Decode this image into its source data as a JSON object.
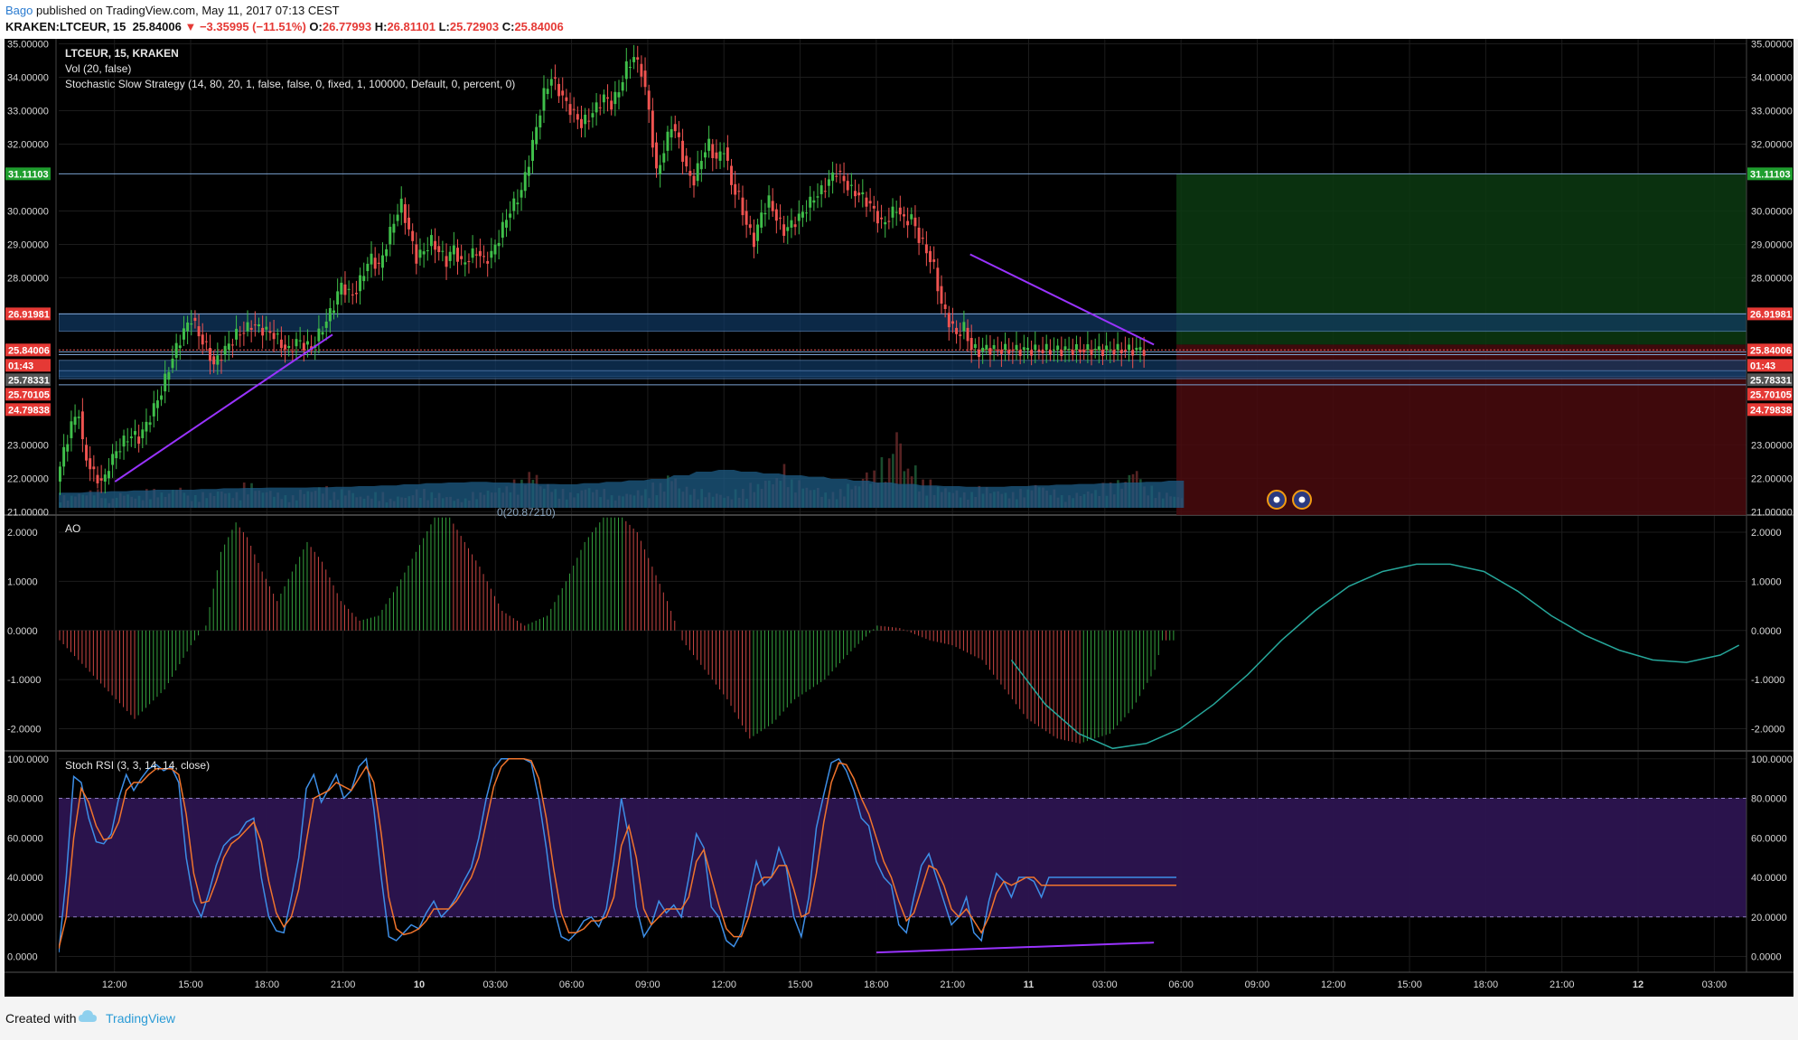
{
  "header": {
    "author": "Bago",
    "published_text": "published on TradingView.com, May 11, 2017 07:13 CEST",
    "symbol_line": "KRAKEN:LTCEUR, 15",
    "price": "25.84006",
    "change": "▼ −3.35995 (−11.51%)",
    "o_label": "O:",
    "o_val": "26.77993",
    "h_label": "H:",
    "h_val": "26.81101",
    "l_label": "L:",
    "l_val": "25.72903",
    "c_label": "C:",
    "c_val": "25.84006"
  },
  "legend": {
    "symbol": "LTCEUR, 15, KRAKEN",
    "volume": "Vol (20, false)",
    "strategy": "Stochastic Slow Strategy (14, 80, 20, 1, false, false, 0, fixed, 1, 100000, Default, 0, percent, 0)",
    "ao": "AO",
    "stoch": "Stoch RSI (3, 3, 14, 14, close)",
    "vol_ma_fragment": "0(20.87210)"
  },
  "price_badges": {
    "target": "31.11103",
    "entry": "26.91981",
    "last": "25.84006",
    "countdown": "01:43",
    "level_a": "25.78331",
    "level_b": "25.70105",
    "stop": "24.79838"
  },
  "footer": {
    "created_with": "Created with",
    "brand": "TradingView"
  },
  "colors": {
    "up": "#26a69a",
    "up_candle": "#3fbf4a",
    "down_candle": "#ef5350",
    "volume": "#1e5a7d",
    "trendline": "#9933ff",
    "stoch_k": "#3d8ee6",
    "stoch_d": "#f0742c",
    "projection": "#26a69a",
    "target_zone": "#0c3a12",
    "stop_zone": "#4a0b0e",
    "band": "#123b66"
  },
  "chart_data": [
    {
      "type": "candlestick",
      "title": "LTCEUR, 15, KRAKEN",
      "ylim": [
        20.9,
        35.15
      ],
      "yticks": [
        "35.00000",
        "34.00000",
        "33.00000",
        "32.00000",
        "30.00000",
        "29.00000",
        "28.00000",
        "23.00000",
        "22.00000",
        "21.00000"
      ],
      "xticks": [
        "12:00",
        "15:00",
        "18:00",
        "21:00",
        "10",
        "03:00",
        "06:00",
        "09:00",
        "12:00",
        "15:00",
        "18:00",
        "21:00",
        "11",
        "03:00",
        "06:00",
        "09:00",
        "12:00",
        "15:00",
        "18:00",
        "21:00",
        "12",
        "03:00"
      ],
      "price_path_x": [
        0,
        2,
        4,
        6,
        7,
        8,
        10,
        12,
        13,
        14,
        16,
        18,
        20,
        22,
        24,
        26,
        28,
        30,
        32,
        34,
        36,
        38,
        40,
        42,
        44,
        46,
        48,
        50,
        52,
        54,
        56,
        58,
        60,
        62,
        64,
        66,
        68,
        70,
        72,
        74,
        76,
        78,
        80,
        82,
        84,
        86,
        88,
        90,
        92,
        94,
        96,
        98,
        100,
        102,
        104,
        106,
        108,
        110,
        112,
        114,
        116,
        118,
        120,
        122,
        124,
        126,
        128,
        130,
        132,
        134,
        136,
        138,
        140,
        142,
        144,
        146,
        148,
        150,
        152,
        154,
        156,
        158,
        160,
        162,
        164,
        166,
        168,
        170,
        172,
        174,
        176,
        178,
        180,
        182,
        184,
        186,
        188,
        190,
        192,
        194,
        196,
        198,
        200,
        202,
        204,
        206,
        208,
        210,
        212,
        214,
        216,
        218,
        220,
        222,
        224,
        226,
        228,
        230,
        232,
        234,
        236,
        238,
        240,
        242,
        244,
        246,
        248,
        250,
        252,
        254,
        256,
        258,
        260,
        262,
        264,
        266,
        268,
        270,
        272,
        274,
        276,
        278,
        280,
        282,
        284,
        286,
        288,
        290,
        292,
        294,
        296,
        298
      ],
      "price_path_y": [
        21.9,
        22.8,
        23.6,
        24.0,
        23.0,
        22.6,
        22.1,
        21.9,
        22.0,
        22.4,
        22.8,
        23.1,
        23.3,
        23.2,
        23.6,
        24.1,
        24.6,
        25.3,
        25.9,
        26.4,
        26.8,
        26.3,
        25.9,
        25.4,
        25.7,
        26.0,
        26.3,
        26.4,
        26.6,
        26.5,
        26.4,
        26.3,
        26.0,
        25.8,
        26.1,
        26.0,
        25.9,
        26.3,
        26.7,
        27.2,
        27.8,
        27.5,
        27.6,
        28.2,
        28.6,
        28.3,
        29.0,
        29.7,
        30.2,
        29.4,
        28.6,
        28.8,
        29.1,
        28.8,
        28.5,
        28.9,
        28.4,
        28.6,
        28.8,
        28.5,
        28.7,
        29.2,
        29.8,
        30.2,
        30.6,
        31.5,
        32.5,
        33.5,
        34.0,
        33.6,
        33.2,
        32.9,
        32.6,
        32.8,
        33.1,
        33.4,
        33.2,
        33.6,
        34.3,
        34.6,
        34.2,
        33.0,
        31.1,
        31.8,
        32.6,
        32.1,
        31.2,
        30.9,
        31.6,
        32.0,
        31.5,
        31.9,
        30.8,
        30.4,
        29.6,
        29.1,
        29.9,
        30.3,
        29.8,
        29.4,
        29.6,
        29.8,
        30.1,
        30.4,
        30.6,
        30.9,
        31.2,
        30.9,
        30.6,
        30.5,
        30.3,
        30.0,
        29.6,
        29.8,
        30.1,
        29.7,
        29.8,
        29.2,
        28.8,
        28.3,
        27.2,
        26.7,
        26.3,
        26.5,
        25.9,
        25.8,
        25.9,
        25.84,
        25.84,
        25.84,
        25.84,
        25.84,
        25.84,
        25.84,
        25.84,
        25.84,
        25.84,
        25.84,
        25.84,
        25.84,
        25.84,
        25.84,
        25.84,
        25.84,
        25.84,
        25.84,
        25.84,
        25.84
      ],
      "horizontal_levels": [
        31.11103,
        26.91981,
        25.84006,
        25.78331,
        25.70105,
        24.79838
      ],
      "entry_band": [
        26.4,
        26.92
      ],
      "support_band": [
        25.05,
        25.53
      ],
      "support_band_2": [
        24.98,
        25.22
      ],
      "target_zone": [
        26.0,
        31.11103
      ],
      "stop_zone": [
        20.9,
        26.0
      ],
      "trendlines": [
        {
          "from": [
            15,
            21.9
          ],
          "to": [
            73,
            26.3
          ]
        },
        {
          "from": [
            243,
            28.7
          ],
          "to": [
            292,
            26.0
          ]
        }
      ]
    },
    {
      "type": "bar",
      "title": "Vol (20, false)",
      "values": [
        0.4,
        0.5,
        0.6,
        0.3,
        0.5,
        0.4,
        0.6,
        0.5,
        0.7,
        0.4,
        0.5,
        0.6,
        0.5,
        0.8,
        0.6,
        0.5,
        0.4,
        0.6,
        0.7,
        0.5,
        0.6,
        0.4,
        0.5,
        0.3,
        0.4,
        0.6,
        0.5,
        0.4,
        0.3,
        0.5,
        0.6,
        0.7,
        0.9,
        1.2,
        0.8,
        0.6,
        0.5,
        0.7,
        0.6,
        0.4,
        0.5,
        0.6,
        0.8,
        1.1,
        0.7,
        0.6,
        0.5,
        0.4,
        0.6,
        0.8,
        1.0,
        1.4,
        0.9,
        0.7,
        0.5,
        0.6,
        0.8,
        1.2,
        1.6,
        2.6,
        1.4,
        0.9,
        0.7,
        0.6,
        0.5,
        0.7,
        0.6,
        0.5,
        0.6,
        0.8,
        0.6,
        0.4,
        0.5,
        0.6,
        0.8,
        0.9,
        1.3,
        0.7,
        0.5,
        0.4
      ],
      "ma": [
        0.42,
        0.44,
        0.46,
        0.48,
        0.5,
        0.5,
        0.52,
        0.54,
        0.55,
        0.56,
        0.56,
        0.57,
        0.58,
        0.6,
        0.62,
        0.65,
        0.68,
        0.7,
        0.72,
        0.7,
        0.68,
        0.66,
        0.65,
        0.68,
        0.72,
        0.76,
        0.8,
        0.9,
        1.0,
        1.05,
        1.0,
        0.95,
        0.9,
        0.86,
        0.8,
        0.75,
        0.7,
        0.66,
        0.62,
        0.6,
        0.58,
        0.58,
        0.6,
        0.62,
        0.64,
        0.66,
        0.68,
        0.7,
        0.72,
        0.75
      ]
    },
    {
      "type": "bar",
      "title": "AO",
      "ylim": [
        -2.45,
        2.35
      ],
      "yticks": [
        "2.0000",
        "1.0000",
        "0.0000",
        "-1.0000",
        "-2.0000"
      ],
      "x": [
        0,
        20,
        28,
        35,
        39,
        43,
        47,
        50,
        54,
        58,
        62,
        66,
        70,
        75,
        80,
        85,
        90,
        95,
        100,
        104,
        108,
        112,
        118,
        124,
        130,
        135,
        140,
        145,
        150,
        154,
        158,
        162,
        166,
        170,
        174,
        178,
        184,
        190,
        196,
        204,
        210,
        218,
        224,
        232,
        238,
        246,
        252,
        258,
        266,
        272,
        280,
        286,
        292,
        294
      ],
      "values": [
        -0.2,
        -1.8,
        -1.2,
        -0.3,
        0.1,
        1.6,
        2.2,
        1.9,
        1.2,
        0.6,
        1.2,
        1.8,
        1.4,
        0.6,
        0.2,
        0.3,
        0.9,
        1.6,
        2.3,
        2.3,
        1.8,
        1.3,
        0.4,
        0.1,
        0.3,
        1.0,
        1.8,
        2.3,
        2.3,
        2.0,
        1.3,
        0.6,
        -0.2,
        -0.6,
        -1.0,
        -1.4,
        -2.2,
        -1.9,
        -1.4,
        -1.0,
        -0.5,
        0.1,
        0.05,
        -0.2,
        -0.3,
        -0.6,
        -1.2,
        -1.8,
        -2.2,
        -2.3,
        -2.1,
        -1.6,
        -0.8,
        -0.2
      ],
      "projection_curve_x": [
        254,
        263,
        272,
        281,
        290,
        299,
        308,
        317,
        326,
        335,
        344,
        353,
        362,
        371,
        380,
        389,
        398,
        407,
        416,
        425,
        434,
        443,
        448
      ],
      "projection_curve_y": [
        -0.6,
        -1.5,
        -2.1,
        -2.4,
        -2.3,
        -2.0,
        -1.5,
        -0.9,
        -0.2,
        0.4,
        0.9,
        1.2,
        1.35,
        1.35,
        1.2,
        0.8,
        0.3,
        -0.1,
        -0.4,
        -0.6,
        -0.65,
        -0.5,
        -0.3
      ]
    },
    {
      "type": "line",
      "title": "Stoch RSI (3, 3, 14, 14, close)",
      "ylim": [
        -8,
        104
      ],
      "yticks": [
        "100.0000",
        "80.0000",
        "60.0000",
        "40.0000",
        "20.0000",
        "0.0000"
      ],
      "bands": [
        20,
        80
      ],
      "x": [
        0,
        2,
        4,
        6,
        8,
        10,
        12,
        14,
        16,
        18,
        20,
        22,
        24,
        26,
        28,
        30,
        32,
        34,
        36,
        38,
        40,
        42,
        44,
        46,
        48,
        50,
        52,
        54,
        56,
        58,
        60,
        62,
        64,
        66,
        68,
        70,
        72,
        74,
        76,
        78,
        80,
        82,
        84,
        86,
        88,
        90,
        92,
        94,
        96,
        98,
        100,
        102,
        104,
        106,
        108,
        110,
        112,
        114,
        116,
        118,
        120,
        122,
        124,
        126,
        128,
        130,
        132,
        134,
        136,
        138,
        140,
        142,
        144,
        146,
        148,
        150,
        152,
        154,
        156,
        158,
        160,
        162,
        164,
        166,
        168,
        170,
        172,
        174,
        176,
        178,
        180,
        182,
        184,
        186,
        188,
        190,
        192,
        194,
        196,
        198,
        200,
        202,
        204,
        206,
        208,
        210,
        212,
        214,
        216,
        218,
        220,
        222,
        224,
        226,
        228,
        230,
        232,
        234,
        236,
        238,
        240,
        242,
        244,
        246,
        248,
        250,
        252,
        254,
        256,
        258,
        260,
        262,
        264,
        266,
        268,
        270,
        272,
        274,
        276,
        278,
        280,
        282,
        284,
        286,
        288,
        290,
        292,
        294,
        296,
        298
      ],
      "series": [
        {
          "name": "K",
          "values": [
            2,
            40,
            91,
            88,
            70,
            58,
            57,
            62,
            80,
            92,
            84,
            90,
            95,
            97,
            94,
            96,
            88,
            50,
            28,
            20,
            32,
            46,
            56,
            60,
            62,
            68,
            70,
            40,
            20,
            13,
            12,
            30,
            50,
            85,
            92,
            78,
            85,
            92,
            80,
            84,
            96,
            100,
            75,
            40,
            10,
            8,
            12,
            16,
            14,
            22,
            28,
            20,
            24,
            30,
            38,
            45,
            60,
            80,
            95,
            100,
            100,
            100,
            100,
            98,
            80,
            55,
            25,
            10,
            8,
            12,
            18,
            20,
            15,
            24,
            48,
            80,
            60,
            25,
            10,
            16,
            28,
            22,
            26,
            20,
            40,
            62,
            55,
            25,
            20,
            8,
            5,
            12,
            30,
            48,
            36,
            40,
            55,
            45,
            20,
            10,
            30,
            65,
            82,
            98,
            100,
            94,
            84,
            70,
            66,
            48,
            40,
            36,
            16,
            12,
            30,
            46,
            52,
            40,
            28,
            16,
            20,
            30,
            12,
            8,
            28,
            42,
            38,
            30,
            40,
            40,
            38,
            30,
            40,
            40,
            40,
            40,
            40,
            40,
            40,
            40,
            40,
            40,
            40,
            40,
            40,
            40,
            40,
            40,
            40,
            40
          ]
        },
        {
          "name": "D",
          "values": [
            4,
            20,
            60,
            85,
            78,
            66,
            59,
            60,
            68,
            84,
            88,
            88,
            92,
            95,
            95,
            95,
            92,
            72,
            42,
            27,
            28,
            38,
            50,
            57,
            60,
            64,
            68,
            58,
            38,
            22,
            15,
            20,
            34,
            58,
            80,
            82,
            84,
            88,
            86,
            84,
            90,
            96,
            88,
            62,
            30,
            14,
            11,
            12,
            14,
            18,
            24,
            24,
            24,
            28,
            34,
            40,
            50,
            68,
            86,
            96,
            100,
            100,
            100,
            99,
            90,
            70,
            44,
            22,
            12,
            12,
            14,
            18,
            18,
            20,
            30,
            56,
            66,
            50,
            24,
            16,
            20,
            24,
            24,
            24,
            30,
            48,
            54,
            40,
            26,
            14,
            10,
            10,
            20,
            36,
            40,
            40,
            46,
            46,
            34,
            20,
            22,
            42,
            68,
            88,
            98,
            97,
            90,
            80,
            72,
            60,
            48,
            40,
            28,
            18,
            22,
            34,
            46,
            44,
            36,
            24,
            20,
            24,
            18,
            12,
            20,
            32,
            38,
            36,
            38,
            40,
            40,
            36,
            36,
            36,
            36,
            36,
            36,
            36,
            36,
            36,
            36,
            36,
            36,
            36,
            36,
            36,
            36,
            36,
            36,
            36
          ]
        }
      ],
      "trendlines": [
        {
          "from": [
            218,
            2
          ],
          "to": [
            292,
            7
          ]
        }
      ]
    }
  ]
}
